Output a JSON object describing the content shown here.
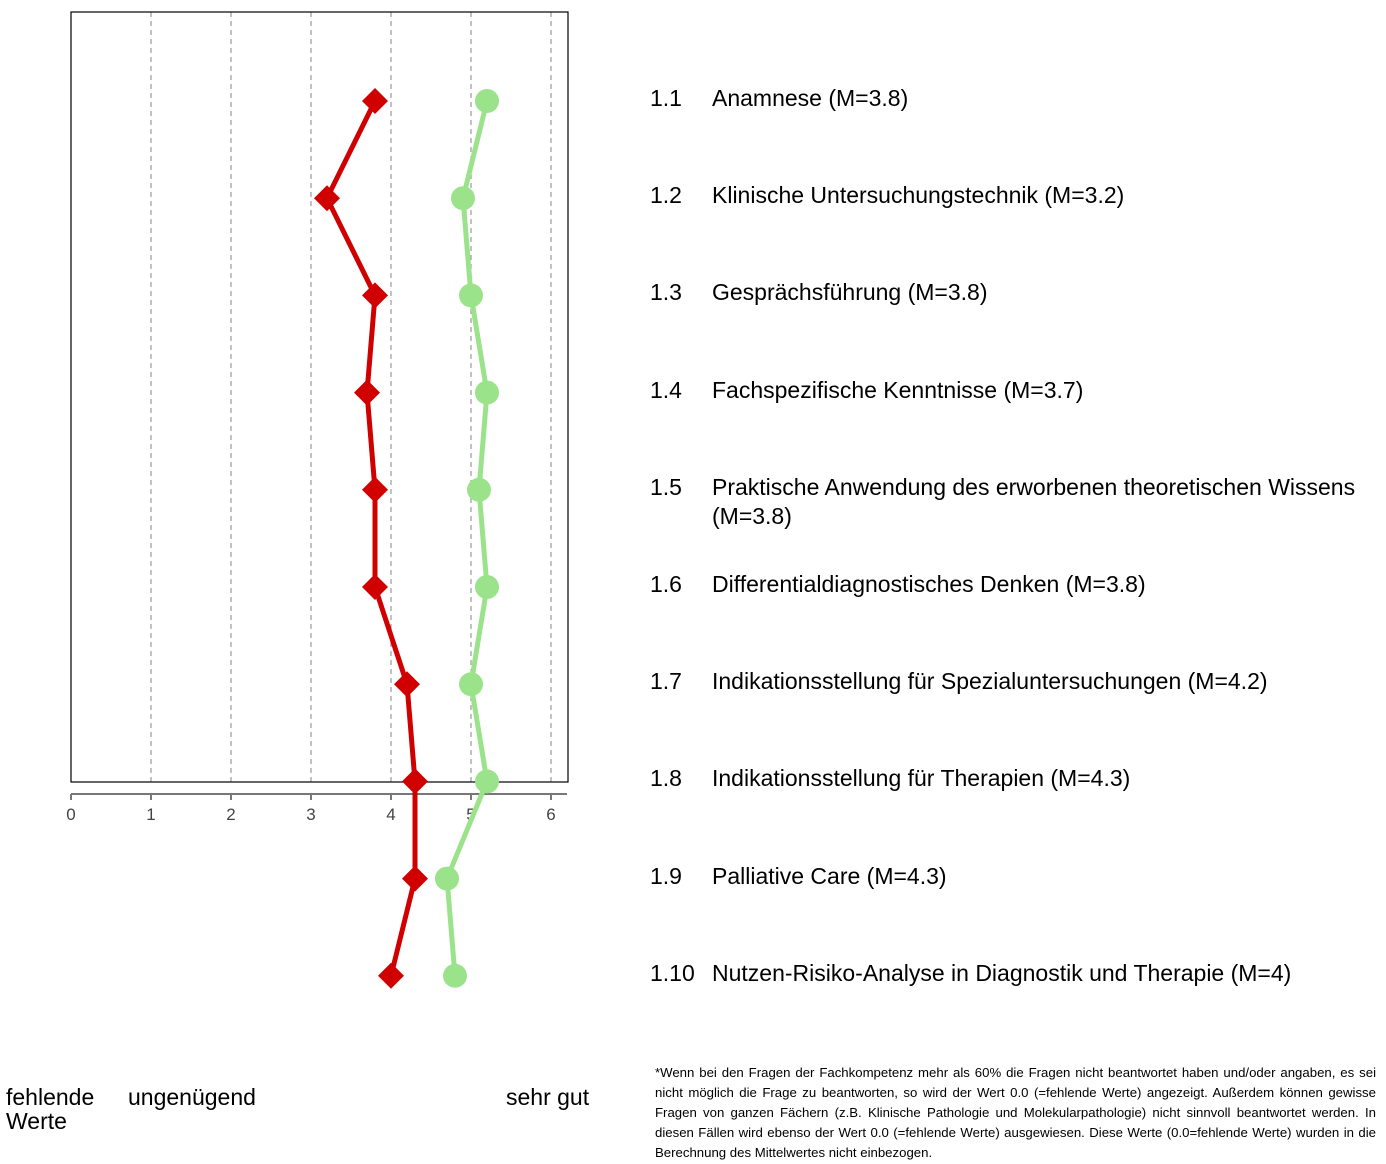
{
  "chart_data": {
    "type": "line",
    "xlim": [
      0,
      6.2
    ],
    "xticks": [
      0,
      1,
      2,
      3,
      4,
      5,
      6
    ],
    "grid": "vertical dashed",
    "series": [
      {
        "color": "#d10000",
        "marker": "diamond",
        "values": [
          3.8,
          3.2,
          3.8,
          3.7,
          3.8,
          3.8,
          4.2,
          4.3,
          4.3,
          4.0
        ]
      },
      {
        "color": "#9be38b",
        "marker": "circle",
        "values": [
          5.2,
          4.9,
          5.0,
          5.2,
          5.1,
          5.2,
          5.0,
          5.2,
          4.7,
          4.8
        ]
      }
    ],
    "categories": [
      {
        "num": "1.1",
        "label": "Anamnese (M=3.8)"
      },
      {
        "num": "1.2",
        "label": "Klinische Untersuchungstechnik (M=3.2)"
      },
      {
        "num": "1.3",
        "label": "Gesprächsführung (M=3.8)"
      },
      {
        "num": "1.4",
        "label": "Fachspezifische Kenntnisse (M=3.7)"
      },
      {
        "num": "1.5",
        "label": "Praktische Anwendung des erworbenen theoretischen Wissens (M=3.8)"
      },
      {
        "num": "1.6",
        "label": "Differentialdiagnostisches Denken (M=3.8)"
      },
      {
        "num": "1.7",
        "label": "Indikationsstellung für Spezialuntersuchungen (M=4.2)"
      },
      {
        "num": "1.8",
        "label": "Indikationsstellung für Therapien (M=4.3)"
      },
      {
        "num": "1.9",
        "label": "Palliative Care (M=4.3)"
      },
      {
        "num": "1.10",
        "label": "Nutzen-Risiko-Analyse in Diagnostik und Therapie (M=4)"
      }
    ],
    "axis_words": {
      "w1": "fehlende Werte",
      "w2": "ungenügend",
      "w3": "sehr gut"
    },
    "footnote": "*Wenn bei den Fragen der Fachkompetenz mehr als 60% die Fragen nicht beantwortet haben und/oder angaben, es sei nicht möglich die Frage zu beantworten, so wird der Wert 0.0 (=fehlende Werte) angezeigt. Außerdem können gewisse Fragen von ganzen Fächern (z.B. Klinische Pathologie und Molekularpathologie) nicht sinnvoll beantwortet werden. In diesen Fällen wird ebenso der Wert 0.0 (=fehlende Werte) ausgewiesen. Diese Werte (0.0=fehlende Werte) wurden in die Berechnung des Mittelwertes nicht einbezogen."
  }
}
